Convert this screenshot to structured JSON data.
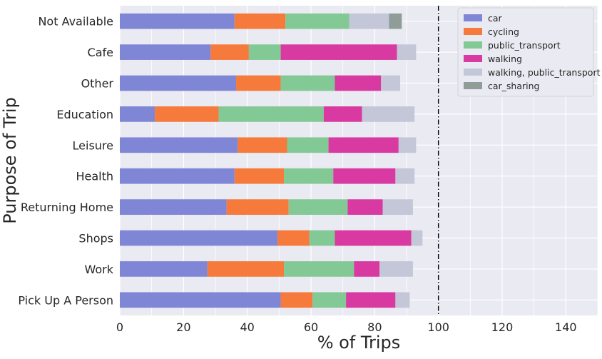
{
  "chart_data": {
    "type": "bar",
    "orientation": "horizontal",
    "stacked": true,
    "title": "",
    "xlabel": "% of Trips",
    "ylabel": "Purpose of Trip",
    "xlim": [
      0,
      150
    ],
    "xticks": [
      0,
      20,
      40,
      60,
      80,
      100,
      120,
      140
    ],
    "grid": true,
    "legend_position": "top-right",
    "reference_line": {
      "x": 100,
      "style": "dash-dot",
      "color": "#000000"
    },
    "categories": [
      "Not Available",
      "Cafe",
      "Other",
      "Education",
      "Leisure",
      "Health",
      "Returning Home",
      "Shops",
      "Work",
      "Pick Up A Person"
    ],
    "series": [
      {
        "name": "car",
        "color": "#7f86d6",
        "values": [
          36,
          28.5,
          36.5,
          11,
          37,
          36,
          33.5,
          49.5,
          27.5,
          50.5
        ]
      },
      {
        "name": "cycling",
        "color": "#f57a3c",
        "values": [
          16,
          12,
          14,
          20,
          15.5,
          15.5,
          19.5,
          10,
          24,
          10
        ]
      },
      {
        "name": "public_transport",
        "color": "#83c995",
        "values": [
          20,
          10,
          17,
          33,
          13,
          15.5,
          18.5,
          8,
          22,
          10.5
        ]
      },
      {
        "name": "walking",
        "color": "#d83aa1",
        "values": [
          0,
          36.5,
          14.5,
          12,
          22,
          19.5,
          11,
          24,
          8,
          15.5
        ]
      },
      {
        "name": "walking, public_transport",
        "color": "#c3c7d7",
        "values": [
          12.5,
          6,
          6,
          16.5,
          5.5,
          6,
          9.5,
          3.5,
          10.5,
          4.5
        ]
      },
      {
        "name": "car_sharing",
        "color": "#8f9c98",
        "values": [
          4,
          0,
          0,
          0,
          0,
          0,
          0,
          0,
          0,
          0
        ]
      }
    ]
  }
}
